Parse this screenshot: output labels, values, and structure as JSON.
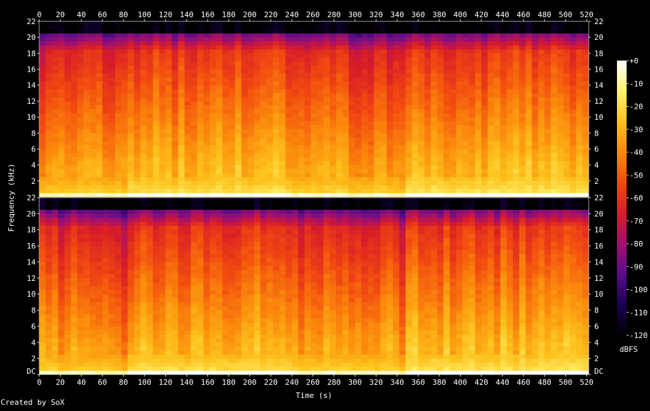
{
  "footer": {
    "credit": "Created by SoX"
  },
  "chart_data": {
    "type": "heatmap",
    "title": "",
    "xlabel": "Time (s)",
    "ylabel": "Frequency (kHz)",
    "colorbar_label": "dBFS",
    "xlim": [
      0,
      520
    ],
    "x_ticks": [
      0,
      20,
      40,
      60,
      80,
      100,
      120,
      140,
      160,
      180,
      200,
      220,
      240,
      260,
      280,
      300,
      320,
      340,
      360,
      380,
      400,
      420,
      440,
      460,
      480,
      500,
      520
    ],
    "ylim": [
      0,
      22
    ],
    "y_ticks": [
      {
        "value": 0,
        "label": "DC"
      },
      {
        "value": 2,
        "label": "2"
      },
      {
        "value": 4,
        "label": "4"
      },
      {
        "value": 6,
        "label": "6"
      },
      {
        "value": 8,
        "label": "8"
      },
      {
        "value": 10,
        "label": "10"
      },
      {
        "value": 12,
        "label": "12"
      },
      {
        "value": 14,
        "label": "14"
      },
      {
        "value": 16,
        "label": "16"
      },
      {
        "value": 18,
        "label": "18"
      },
      {
        "value": 20,
        "label": "20"
      },
      {
        "value": 22,
        "label": "22"
      }
    ],
    "colorbar_range": [
      -120,
      0
    ],
    "colorbar_ticks": [
      {
        "value": 0,
        "label": "+0"
      },
      {
        "value": -10,
        "label": "-10"
      },
      {
        "value": -20,
        "label": "-20"
      },
      {
        "value": -30,
        "label": "-30"
      },
      {
        "value": -40,
        "label": "-40"
      },
      {
        "value": -50,
        "label": "-50"
      },
      {
        "value": -60,
        "label": "-60"
      },
      {
        "value": -70,
        "label": "-70"
      },
      {
        "value": -80,
        "label": "-80"
      },
      {
        "value": -90,
        "label": "-90"
      },
      {
        "value": -100,
        "label": "-100"
      },
      {
        "value": -110,
        "label": "-110"
      },
      {
        "value": -120,
        "label": "-120"
      }
    ],
    "channels": 2,
    "duration_s": 522,
    "cutoff_khz": 20,
    "colormap": [
      "#000000",
      "#1a0050",
      "#5a0c8c",
      "#a0106e",
      "#d81c28",
      "#f24a10",
      "#fb8a0c",
      "#fdc21c",
      "#fff270",
      "#ffffff"
    ]
  }
}
